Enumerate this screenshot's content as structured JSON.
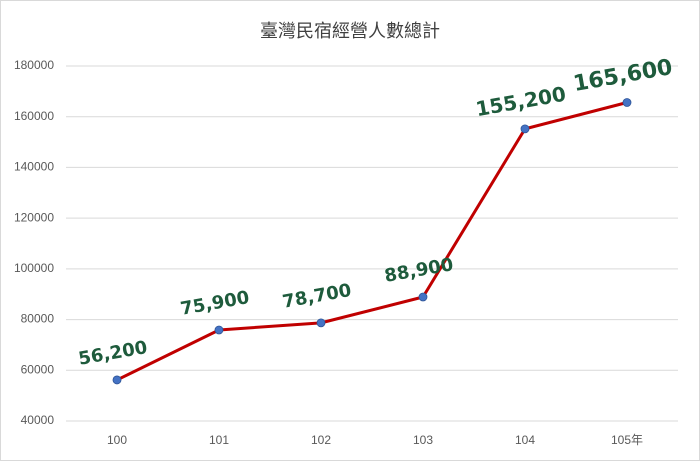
{
  "chart_data": {
    "type": "line",
    "title": "臺灣民宿經營人數總計",
    "categories": [
      "100",
      "101",
      "102",
      "103",
      "104",
      "105年"
    ],
    "values": [
      56200,
      75900,
      78700,
      88900,
      155200,
      165600
    ],
    "value_labels": [
      "56,200",
      "75,900",
      "78,700",
      "88,900",
      "155,200",
      "165,600"
    ],
    "color": "#c00000",
    "marker_color": "#4472c4",
    "label_color": "#1e5b3c",
    "ylim": [
      40000,
      180000
    ],
    "yticks": [
      40000,
      60000,
      80000,
      100000,
      120000,
      140000,
      160000,
      180000
    ],
    "grid": true
  }
}
